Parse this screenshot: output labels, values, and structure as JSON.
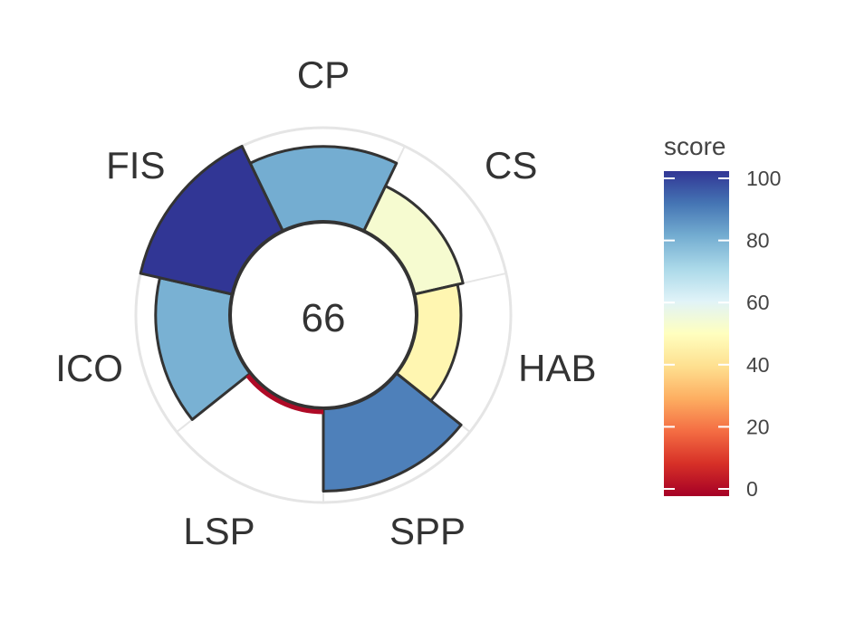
{
  "chart_data": {
    "type": "flower",
    "center_label": "66",
    "segments": [
      {
        "label": "CP",
        "value": 80
      },
      {
        "label": "CS",
        "value": 53
      },
      {
        "label": "HAB",
        "value": 47
      },
      {
        "label": "SPP",
        "value": 88
      },
      {
        "label": "LSP",
        "value": 2
      },
      {
        "label": "ICO",
        "value": 79
      },
      {
        "label": "FIS",
        "value": 100
      }
    ],
    "legend": {
      "title": "score",
      "ticks": [
        "0",
        "20",
        "40",
        "60",
        "80",
        "100"
      ],
      "range": [
        0,
        100
      ]
    },
    "colors": {
      "scale": [
        "#a50026",
        "#d73027",
        "#f46d43",
        "#fdae61",
        "#fee090",
        "#ffffbf",
        "#e0f3f8",
        "#abd9e9",
        "#74add1",
        "#4575b4",
        "#313695"
      ],
      "ring": "#e5e5e5",
      "outline": "#333333"
    }
  }
}
